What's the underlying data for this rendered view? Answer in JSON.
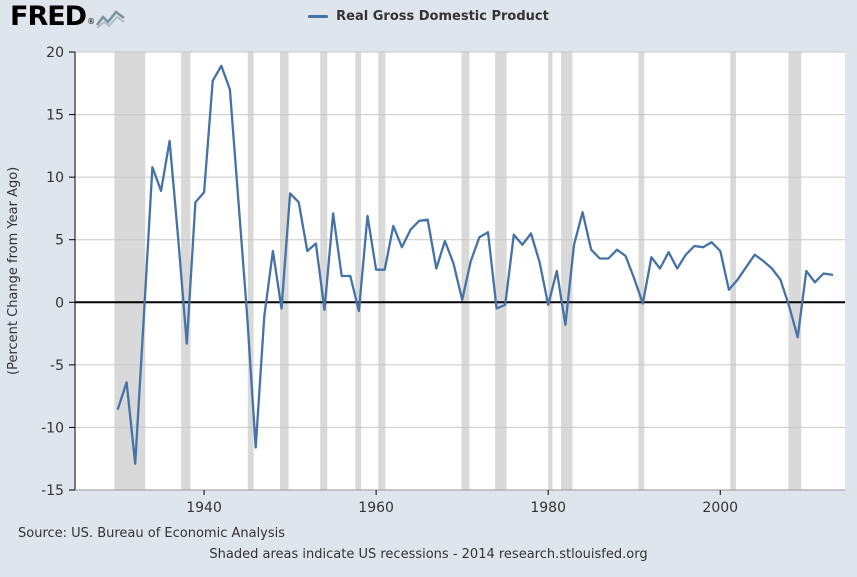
{
  "header": {
    "logo_text": "FRED",
    "logo_registered": "®",
    "legend_label": "Real Gross Domestic Product"
  },
  "footer": {
    "source": "Source: US. Bureau of Economic Analysis",
    "note": "Shaded areas indicate US recessions - 2014 research.stlouisfed.org"
  },
  "colors": {
    "background": "#dee5ec",
    "plot_bg": "#ffffff",
    "grid": "#c8c8c8",
    "axis": "#000000",
    "text": "#333333",
    "logo_accent": "#7a94a3"
  },
  "chart_data": {
    "type": "line",
    "title": "Real Gross Domestic Product",
    "series_name": "Real Gross Domestic Product",
    "ylabel": "(Percent Change from Year Ago)",
    "xlim": [
      1925,
      2014.5
    ],
    "ylim": [
      -15,
      20
    ],
    "xticks": [
      1940,
      1960,
      1980,
      2000
    ],
    "yticks": [
      -15,
      -10,
      -5,
      0,
      5,
      10,
      15,
      20
    ],
    "grid": true,
    "legend_position": "top-center",
    "line_color": "#4572a7",
    "recession_color": "#d9d9d9",
    "x": [
      1930,
      1931,
      1932,
      1933,
      1934,
      1935,
      1936,
      1937,
      1938,
      1939,
      1940,
      1941,
      1942,
      1943,
      1944,
      1945,
      1946,
      1947,
      1948,
      1949,
      1950,
      1951,
      1952,
      1953,
      1954,
      1955,
      1956,
      1957,
      1958,
      1959,
      1960,
      1961,
      1962,
      1963,
      1964,
      1965,
      1966,
      1967,
      1968,
      1969,
      1970,
      1971,
      1972,
      1973,
      1974,
      1975,
      1976,
      1977,
      1978,
      1979,
      1980,
      1981,
      1982,
      1983,
      1984,
      1985,
      1986,
      1987,
      1988,
      1989,
      1990,
      1991,
      1992,
      1993,
      1994,
      1995,
      1996,
      1997,
      1998,
      1999,
      2000,
      2001,
      2002,
      2003,
      2004,
      2005,
      2006,
      2007,
      2008,
      2009,
      2010,
      2011,
      2012,
      2013
    ],
    "values": [
      -8.5,
      -6.4,
      -12.9,
      -1.2,
      10.8,
      8.9,
      12.9,
      5.1,
      -3.3,
      8.0,
      8.8,
      17.7,
      18.9,
      17.0,
      8.0,
      -1.0,
      -11.6,
      -1.1,
      4.1,
      -0.5,
      8.7,
      8.0,
      4.1,
      4.7,
      -0.6,
      7.1,
      2.1,
      2.1,
      -0.7,
      6.9,
      2.6,
      2.6,
      6.1,
      4.4,
      5.8,
      6.5,
      6.6,
      2.7,
      4.9,
      3.1,
      0.2,
      3.3,
      5.2,
      5.6,
      -0.5,
      -0.2,
      5.4,
      4.6,
      5.5,
      3.2,
      -0.2,
      2.5,
      -1.8,
      4.6,
      7.2,
      4.2,
      3.5,
      3.5,
      4.2,
      3.7,
      1.9,
      -0.1,
      3.6,
      2.7,
      4.0,
      2.7,
      3.8,
      4.5,
      4.4,
      4.8,
      4.1,
      1.0,
      1.8,
      2.8,
      3.8,
      3.3,
      2.7,
      1.8,
      -0.3,
      -2.8,
      2.5,
      1.6,
      2.3,
      2.2
    ],
    "recessions": [
      [
        1929.58,
        1933.17
      ],
      [
        1937.33,
        1938.42
      ],
      [
        1945.08,
        1945.75
      ],
      [
        1948.83,
        1949.83
      ],
      [
        1953.5,
        1954.33
      ],
      [
        1957.58,
        1958.25
      ],
      [
        1960.25,
        1961.08
      ],
      [
        1969.92,
        1970.83
      ],
      [
        1973.83,
        1975.17
      ],
      [
        1980.0,
        1980.5
      ],
      [
        1981.5,
        1982.83
      ],
      [
        1990.5,
        1991.17
      ],
      [
        2001.17,
        2001.83
      ],
      [
        2007.92,
        2009.42
      ]
    ]
  }
}
